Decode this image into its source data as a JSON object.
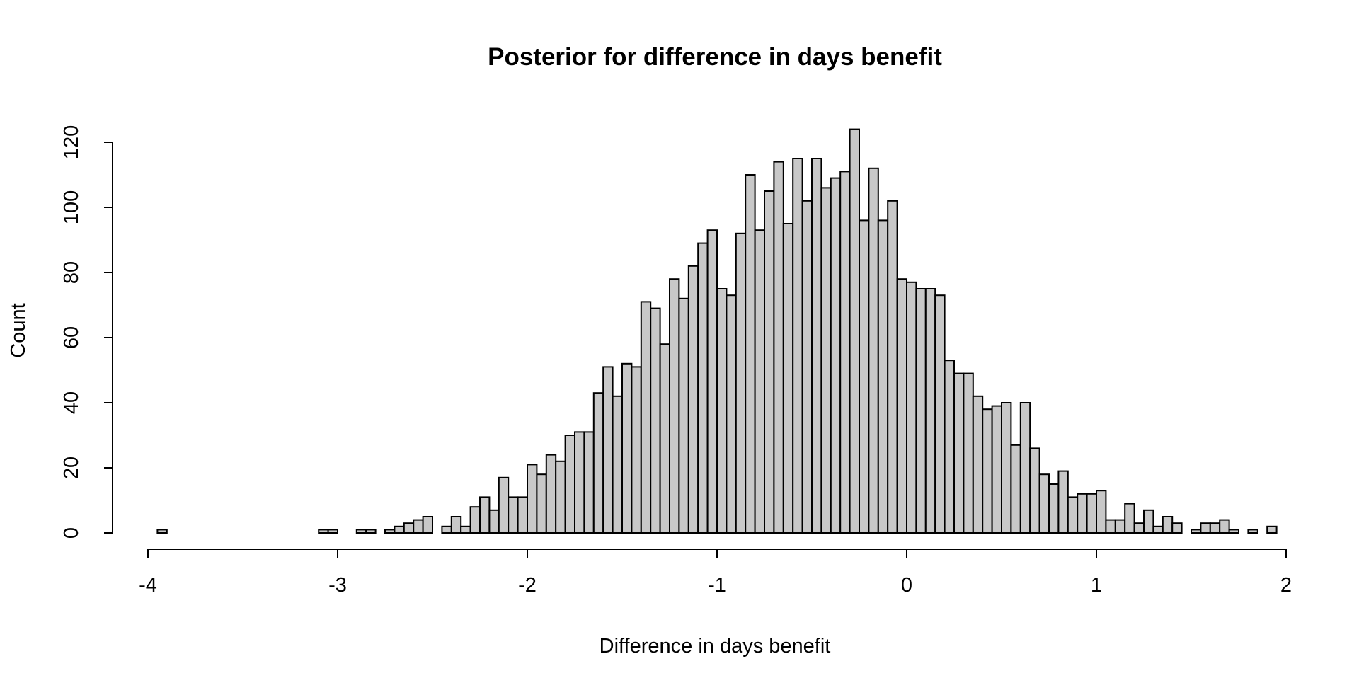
{
  "chart_data": {
    "type": "bar",
    "title": "Posterior for difference in days benefit",
    "xlabel": "Difference in days benefit",
    "ylabel": "Count",
    "bin_width": 0.05,
    "bin_starts": [
      -3.95,
      -3.9,
      -3.85,
      -3.8,
      -3.75,
      -3.7,
      -3.65,
      -3.6,
      -3.55,
      -3.5,
      -3.45,
      -3.4,
      -3.35,
      -3.3,
      -3.25,
      -3.2,
      -3.15,
      -3.1,
      -3.05,
      -3.0,
      -2.95,
      -2.9,
      -2.85,
      -2.8,
      -2.75,
      -2.7,
      -2.65,
      -2.6,
      -2.55,
      -2.5,
      -2.45,
      -2.4,
      -2.35,
      -2.3,
      -2.25,
      -2.2,
      -2.15,
      -2.1,
      -2.05,
      -2.0,
      -1.95,
      -1.9,
      -1.85,
      -1.8,
      -1.75,
      -1.7,
      -1.65,
      -1.6,
      -1.55,
      -1.5,
      -1.45,
      -1.4,
      -1.35,
      -1.3,
      -1.25,
      -1.2,
      -1.15,
      -1.1,
      -1.05,
      -1.0,
      -0.95,
      -0.9,
      -0.85,
      -0.8,
      -0.75,
      -0.7,
      -0.65,
      -0.6,
      -0.55,
      -0.5,
      -0.45,
      -0.4,
      -0.35,
      -0.3,
      -0.25,
      -0.2,
      -0.15,
      -0.1,
      -0.05,
      0.0,
      0.05,
      0.1,
      0.15,
      0.2,
      0.25,
      0.3,
      0.35,
      0.4,
      0.45,
      0.5,
      0.55,
      0.6,
      0.65,
      0.7,
      0.75,
      0.8,
      0.85,
      0.9,
      0.95,
      1.0,
      1.05,
      1.1,
      1.15,
      1.2,
      1.25,
      1.3,
      1.35,
      1.4,
      1.45,
      1.5,
      1.55,
      1.6,
      1.65,
      1.7,
      1.75,
      1.8,
      1.85,
      1.9
    ],
    "values": [
      1,
      0,
      0,
      0,
      0,
      0,
      0,
      0,
      0,
      0,
      0,
      0,
      0,
      0,
      0,
      0,
      0,
      1,
      1,
      0,
      0,
      1,
      1,
      0,
      1,
      2,
      3,
      4,
      5,
      0,
      2,
      5,
      2,
      8,
      11,
      7,
      17,
      11,
      11,
      21,
      18,
      24,
      22,
      30,
      31,
      31,
      43,
      51,
      42,
      52,
      51,
      71,
      69,
      58,
      78,
      72,
      82,
      89,
      93,
      75,
      73,
      92,
      110,
      93,
      105,
      114,
      95,
      115,
      102,
      115,
      106,
      109,
      111,
      124,
      96,
      112,
      96,
      102,
      78,
      77,
      75,
      75,
      73,
      53,
      49,
      49,
      42,
      38,
      39,
      40,
      27,
      40,
      26,
      18,
      15,
      19,
      11,
      12,
      12,
      13,
      4,
      4,
      9,
      3,
      7,
      2,
      5,
      3,
      0,
      1,
      3,
      3,
      4,
      1,
      0,
      1,
      0,
      2
    ],
    "xlim": [
      -4,
      2
    ],
    "ylim": [
      0,
      120
    ],
    "x_ticks": [
      -4,
      -3,
      -2,
      -1,
      0,
      1,
      2
    ],
    "x_tick_labels": [
      "-4",
      "-3",
      "-2",
      "-1",
      "0",
      "1",
      "2"
    ],
    "y_ticks": [
      0,
      20,
      40,
      60,
      80,
      100,
      120
    ],
    "y_tick_labels": [
      "0",
      "20",
      "40",
      "60",
      "80",
      "100",
      "120"
    ],
    "bar_color": "#c8c8c8",
    "edge_color": "#000000",
    "grid": false
  }
}
